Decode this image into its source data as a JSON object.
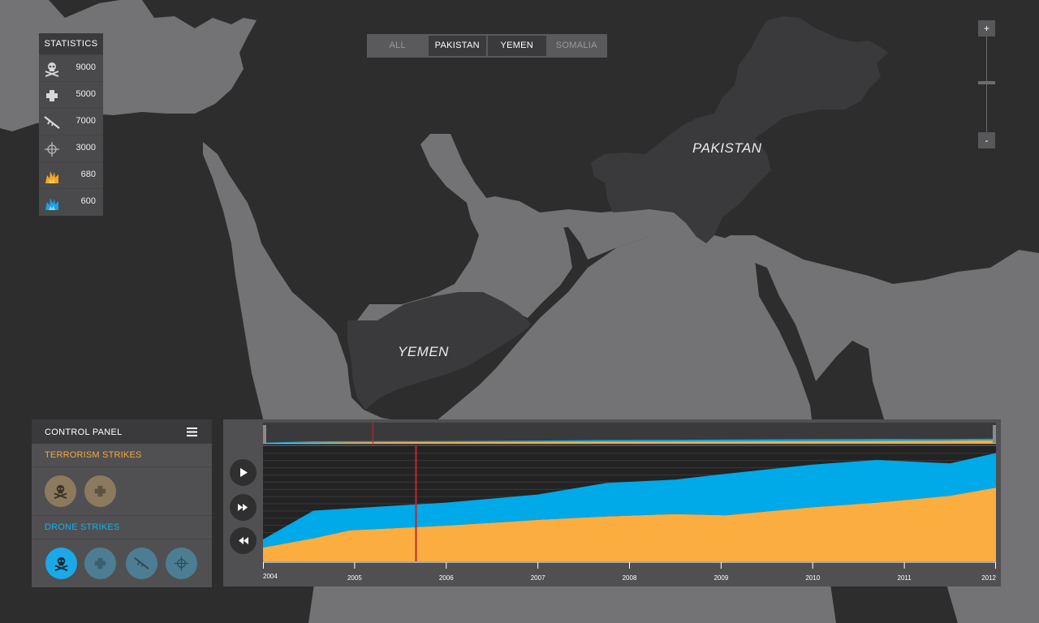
{
  "map": {
    "labels": {
      "pakistan": "PAKISTAN",
      "yemen": "YEMEN"
    }
  },
  "statistics": {
    "title": "STATISTICS",
    "rows": [
      {
        "icon": "skull-icon",
        "value": "9000"
      },
      {
        "icon": "cross-icon",
        "value": "5000"
      },
      {
        "icon": "rifle-icon",
        "value": "7000"
      },
      {
        "icon": "crosshair-icon",
        "value": "3000"
      },
      {
        "icon": "orange-explosion-icon",
        "value": "680"
      },
      {
        "icon": "blue-explosion-icon",
        "value": "600"
      }
    ]
  },
  "tabs": [
    {
      "label": "ALL",
      "active": false
    },
    {
      "label": "PAKISTAN",
      "active": true
    },
    {
      "label": "YEMEN",
      "active": true
    },
    {
      "label": "SOMALIA",
      "active": false
    }
  ],
  "zoom": {
    "plus": "+",
    "minus": "-"
  },
  "control_panel": {
    "title": "CONTROL PANEL",
    "terrorism_title": "TERRORISM STRIKES",
    "drone_title": "DRONE STRIKES"
  },
  "colors": {
    "orange": "#fbad40",
    "blue": "#00a9e8",
    "marker": "#c1272d"
  },
  "chart_data": {
    "type": "area",
    "stacked": true,
    "x": [
      2004,
      2004.55,
      2004.95,
      2006,
      2007,
      2007.75,
      2008.5,
      2009.05,
      2010,
      2010.7,
      2011.5,
      2012
    ],
    "series": [
      {
        "values": [
          0.12,
          0.2,
          0.27,
          0.31,
          0.36,
          0.39,
          0.41,
          0.4,
          0.47,
          0.51,
          0.57,
          0.64
        ]
      },
      {
        "values": [
          0.07,
          0.24,
          0.19,
          0.2,
          0.22,
          0.29,
          0.3,
          0.36,
          0.37,
          0.37,
          0.28,
          0.3
        ]
      }
    ],
    "xlim": [
      2004,
      2012
    ],
    "ylim": [
      0,
      1
    ],
    "x_ticks": [
      "2004",
      "2005",
      "2006",
      "2007",
      "2008",
      "2009",
      "2010",
      "2011",
      "2012"
    ],
    "marker_x": 2005.67,
    "overview_marker_x": 2005.2,
    "grid": true
  }
}
